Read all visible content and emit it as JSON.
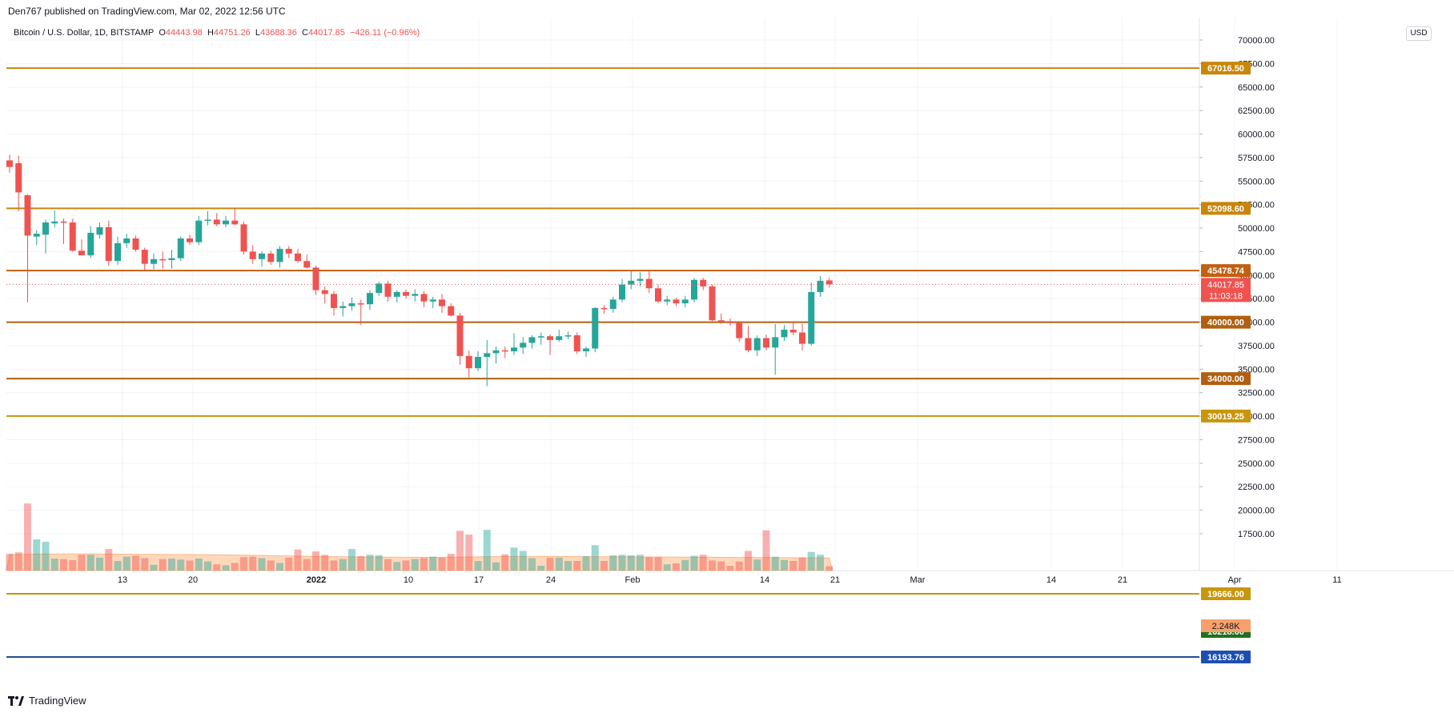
{
  "header": {
    "published": "Den767 published on TradingView.com, Mar 02, 2022 12:56 UTC"
  },
  "symbol_bar": {
    "name": "Bitcoin / U.S. Dollar, 1D, BITSTAMP",
    "o_label": "O",
    "o_value": "44443.98",
    "h_label": "H",
    "h_value": "44751.26",
    "l_label": "L",
    "l_value": "43688.36",
    "c_label": "C",
    "c_value": "44017.85",
    "change": "−426.11 (−0.96%)"
  },
  "currency_button": "USD",
  "footer": {
    "brand": "TradingView"
  },
  "colors": {
    "up": "#26a69a",
    "down": "#ef5350",
    "level_line": "#b8860b",
    "grid": "#f0f3fa",
    "blue_line": "#1e4f8a",
    "volume_ma": "#ffcba4"
  },
  "chart_data": {
    "type": "candlestick",
    "ylim": [
      14300,
      71500
    ],
    "price_ticks": [
      "70000.00",
      "67500.00",
      "65000.00",
      "62500.00",
      "60000.00",
      "57500.00",
      "55000.00",
      "52500.00",
      "50000.00",
      "47500.00",
      "45000.00",
      "42500.00",
      "40000.00",
      "37500.00",
      "35000.00",
      "32500.00",
      "30000.00",
      "27500.00",
      "25000.00",
      "22500.00",
      "20000.00",
      "17500.00"
    ],
    "x_ticks": [
      "13",
      "20",
      "2022",
      "10",
      "17",
      "24",
      "Feb",
      "14",
      "21",
      "Mar",
      "14",
      "21",
      "Apr",
      "11"
    ],
    "horizontal_levels": [
      {
        "price": 67016.5,
        "label": "67016.50",
        "color": "#c8860a"
      },
      {
        "price": 52098.6,
        "label": "52098.60",
        "color": "#c8860a"
      },
      {
        "price": 45478.74,
        "label": "45478.74",
        "color": "#c06010"
      },
      {
        "price": 40000.0,
        "label": "40000.00",
        "color": "#b06010"
      },
      {
        "price": 34000.0,
        "label": "34000.00",
        "color": "#b06010"
      },
      {
        "price": 30019.25,
        "label": "30019.25",
        "color": "#c8960a"
      },
      {
        "price": 19666.0,
        "label": "19666.00",
        "color": "#c8960a"
      },
      {
        "price": 16218.0,
        "label": "16218.00",
        "color": "#1f6f1f"
      },
      {
        "price": 16193.76,
        "label": "16193.76",
        "color": "#1e4fb0"
      }
    ],
    "last_price": {
      "value": 44017.85,
      "label": "44017.85",
      "countdown": "11:03:18"
    },
    "volume_label": "2.248K",
    "candles": [
      {
        "o": 57200,
        "h": 57800,
        "l": 55900,
        "c": 56500
      },
      {
        "o": 56900,
        "h": 57700,
        "l": 51800,
        "c": 53800
      },
      {
        "o": 53500,
        "h": 53600,
        "l": 42100,
        "c": 49200
      },
      {
        "o": 49100,
        "h": 49800,
        "l": 48200,
        "c": 49400
      },
      {
        "o": 49300,
        "h": 50900,
        "l": 47300,
        "c": 50600
      },
      {
        "o": 50500,
        "h": 51900,
        "l": 50100,
        "c": 50700
      },
      {
        "o": 50700,
        "h": 51000,
        "l": 48300,
        "c": 50600
      },
      {
        "o": 50600,
        "h": 51000,
        "l": 47500,
        "c": 47600
      },
      {
        "o": 47600,
        "h": 48800,
        "l": 47200,
        "c": 47100
      },
      {
        "o": 47100,
        "h": 50200,
        "l": 46800,
        "c": 49500
      },
      {
        "o": 49300,
        "h": 50600,
        "l": 48900,
        "c": 50100
      },
      {
        "o": 50100,
        "h": 50800,
        "l": 46000,
        "c": 46500
      },
      {
        "o": 46500,
        "h": 49100,
        "l": 46100,
        "c": 48400
      },
      {
        "o": 48400,
        "h": 49400,
        "l": 47900,
        "c": 48900
      },
      {
        "o": 48900,
        "h": 49200,
        "l": 47500,
        "c": 47700
      },
      {
        "o": 47700,
        "h": 47900,
        "l": 45500,
        "c": 46200
      },
      {
        "o": 46200,
        "h": 47300,
        "l": 45600,
        "c": 46700
      },
      {
        "o": 46700,
        "h": 47500,
        "l": 45700,
        "c": 46600
      },
      {
        "o": 46600,
        "h": 47700,
        "l": 45700,
        "c": 46800
      },
      {
        "o": 46800,
        "h": 49100,
        "l": 46500,
        "c": 48900
      },
      {
        "o": 48900,
        "h": 49300,
        "l": 48200,
        "c": 48500
      },
      {
        "o": 48500,
        "h": 51300,
        "l": 48200,
        "c": 50800
      },
      {
        "o": 50800,
        "h": 51800,
        "l": 50300,
        "c": 50900
      },
      {
        "o": 50900,
        "h": 51600,
        "l": 50200,
        "c": 50400
      },
      {
        "o": 50400,
        "h": 51300,
        "l": 50100,
        "c": 50800
      },
      {
        "o": 50800,
        "h": 52100,
        "l": 50300,
        "c": 50400
      },
      {
        "o": 50400,
        "h": 50700,
        "l": 47200,
        "c": 47500
      },
      {
        "o": 47500,
        "h": 48200,
        "l": 46200,
        "c": 46700
      },
      {
        "o": 46700,
        "h": 47500,
        "l": 45900,
        "c": 47300
      },
      {
        "o": 47300,
        "h": 47600,
        "l": 46100,
        "c": 46400
      },
      {
        "o": 46400,
        "h": 48100,
        "l": 45800,
        "c": 47800
      },
      {
        "o": 47800,
        "h": 48100,
        "l": 46800,
        "c": 47300
      },
      {
        "o": 47300,
        "h": 47800,
        "l": 46300,
        "c": 46500
      },
      {
        "o": 46500,
        "h": 47200,
        "l": 45700,
        "c": 45800
      },
      {
        "o": 45800,
        "h": 46000,
        "l": 42900,
        "c": 43400
      },
      {
        "o": 43400,
        "h": 43800,
        "l": 42000,
        "c": 43000
      },
      {
        "o": 43000,
        "h": 43300,
        "l": 40700,
        "c": 41500
      },
      {
        "o": 41500,
        "h": 42200,
        "l": 40600,
        "c": 41700
      },
      {
        "o": 41700,
        "h": 42600,
        "l": 41200,
        "c": 42000
      },
      {
        "o": 42000,
        "h": 42400,
        "l": 39700,
        "c": 41900
      },
      {
        "o": 41900,
        "h": 43400,
        "l": 41300,
        "c": 43100
      },
      {
        "o": 43100,
        "h": 44300,
        "l": 42800,
        "c": 44100
      },
      {
        "o": 44100,
        "h": 44400,
        "l": 42200,
        "c": 42700
      },
      {
        "o": 42700,
        "h": 43400,
        "l": 42100,
        "c": 43200
      },
      {
        "o": 43200,
        "h": 43500,
        "l": 42500,
        "c": 42800
      },
      {
        "o": 42800,
        "h": 43500,
        "l": 42200,
        "c": 43000
      },
      {
        "o": 43000,
        "h": 43300,
        "l": 41600,
        "c": 42200
      },
      {
        "o": 42200,
        "h": 42700,
        "l": 41500,
        "c": 42400
      },
      {
        "o": 42400,
        "h": 43000,
        "l": 41000,
        "c": 41700
      },
      {
        "o": 41700,
        "h": 42000,
        "l": 40600,
        "c": 40700
      },
      {
        "o": 40700,
        "h": 41000,
        "l": 35500,
        "c": 36400
      },
      {
        "o": 36400,
        "h": 37000,
        "l": 34100,
        "c": 35100
      },
      {
        "o": 35100,
        "h": 36900,
        "l": 34800,
        "c": 36300
      },
      {
        "o": 36300,
        "h": 38100,
        "l": 33200,
        "c": 36700
      },
      {
        "o": 36700,
        "h": 37400,
        "l": 35600,
        "c": 37000
      },
      {
        "o": 37000,
        "h": 37400,
        "l": 36200,
        "c": 36900
      },
      {
        "o": 36900,
        "h": 38800,
        "l": 36500,
        "c": 37300
      },
      {
        "o": 37300,
        "h": 38400,
        "l": 36600,
        "c": 37800
      },
      {
        "o": 37800,
        "h": 38600,
        "l": 37200,
        "c": 38400
      },
      {
        "o": 38400,
        "h": 38900,
        "l": 37600,
        "c": 38500
      },
      {
        "o": 38500,
        "h": 38700,
        "l": 36500,
        "c": 38100
      },
      {
        "o": 38100,
        "h": 39200,
        "l": 37900,
        "c": 38500
      },
      {
        "o": 38500,
        "h": 39000,
        "l": 38200,
        "c": 38600
      },
      {
        "o": 38600,
        "h": 38900,
        "l": 36600,
        "c": 36900
      },
      {
        "o": 36900,
        "h": 37400,
        "l": 36300,
        "c": 37200
      },
      {
        "o": 37200,
        "h": 41600,
        "l": 36800,
        "c": 41500
      },
      {
        "o": 41500,
        "h": 41800,
        "l": 40900,
        "c": 41400
      },
      {
        "o": 41400,
        "h": 42700,
        "l": 41000,
        "c": 42400
      },
      {
        "o": 42400,
        "h": 44600,
        "l": 42100,
        "c": 44000
      },
      {
        "o": 44000,
        "h": 45400,
        "l": 43500,
        "c": 44400
      },
      {
        "o": 44400,
        "h": 45300,
        "l": 43800,
        "c": 44600
      },
      {
        "o": 44600,
        "h": 45600,
        "l": 43100,
        "c": 43600
      },
      {
        "o": 43600,
        "h": 44000,
        "l": 42000,
        "c": 42200
      },
      {
        "o": 42200,
        "h": 42800,
        "l": 41800,
        "c": 42400
      },
      {
        "o": 42400,
        "h": 42600,
        "l": 41700,
        "c": 42000
      },
      {
        "o": 42000,
        "h": 42800,
        "l": 41600,
        "c": 42400
      },
      {
        "o": 42400,
        "h": 44700,
        "l": 42100,
        "c": 44500
      },
      {
        "o": 44500,
        "h": 44700,
        "l": 43400,
        "c": 43800
      },
      {
        "o": 43800,
        "h": 44000,
        "l": 40100,
        "c": 40200
      },
      {
        "o": 40200,
        "h": 40900,
        "l": 39800,
        "c": 40100
      },
      {
        "o": 40100,
        "h": 40400,
        "l": 39600,
        "c": 39900
      },
      {
        "o": 39900,
        "h": 40100,
        "l": 37900,
        "c": 38300
      },
      {
        "o": 38300,
        "h": 39600,
        "l": 36800,
        "c": 37000
      },
      {
        "o": 37000,
        "h": 38600,
        "l": 36400,
        "c": 38300
      },
      {
        "o": 38300,
        "h": 38700,
        "l": 37000,
        "c": 37300
      },
      {
        "o": 37300,
        "h": 39800,
        "l": 34400,
        "c": 38400
      },
      {
        "o": 38400,
        "h": 39700,
        "l": 38000,
        "c": 39200
      },
      {
        "o": 39200,
        "h": 40000,
        "l": 38600,
        "c": 38900
      },
      {
        "o": 38900,
        "h": 39800,
        "l": 37000,
        "c": 37700
      },
      {
        "o": 37700,
        "h": 44200,
        "l": 37500,
        "c": 43200
      },
      {
        "o": 43200,
        "h": 44900,
        "l": 42700,
        "c": 44400
      },
      {
        "o": 44440,
        "h": 44750,
        "l": 43690,
        "c": 44020
      }
    ],
    "volume_scale": {
      "ymin": 14300,
      "ymax": 28500
    },
    "volumes": [
      17800,
      18100,
      28300,
      20800,
      20300,
      16800,
      16700,
      16500,
      17600,
      17600,
      17000,
      18800,
      16300,
      17200,
      17400,
      16900,
      15500,
      16700,
      16800,
      16600,
      16400,
      16800,
      16200,
      15600,
      15400,
      15900,
      17100,
      17200,
      16900,
      16400,
      15900,
      17000,
      18700,
      16700,
      18300,
      17600,
      16400,
      16700,
      18800,
      17300,
      17600,
      17500,
      16700,
      16100,
      16400,
      16700,
      16900,
      17200,
      17000,
      17800,
      22600,
      21800,
      16300,
      22800,
      16000,
      17700,
      19100,
      18400,
      16900,
      15300,
      17000,
      17000,
      16300,
      16300,
      17300,
      19600,
      16300,
      17500,
      17600,
      17500,
      17600,
      17100,
      17100,
      15600,
      15800,
      16500,
      17400,
      17600,
      16400,
      16200,
      15300,
      16200,
      18400,
      16600,
      22700,
      17200,
      16500,
      16300,
      17000,
      18200,
      17600,
      15200
    ],
    "volume_ma": [
      17600,
      17650,
      17700,
      17720,
      17740,
      17750,
      17760,
      17760,
      17760,
      17760,
      17750,
      17740,
      17730,
      17720,
      17700,
      17690,
      17680,
      17670,
      17660,
      17650,
      17640,
      17620,
      17600,
      17580,
      17560,
      17540,
      17520,
      17500,
      17460,
      17420,
      17380,
      17340,
      17310,
      17280,
      17250,
      17220,
      17200,
      17180,
      17160,
      17140,
      17120,
      17110,
      17100,
      17090,
      17080,
      17070,
      17060,
      17060,
      17060,
      17080,
      17110,
      17140,
      17170,
      17200,
      17220,
      17240,
      17260,
      17270,
      17270,
      17260,
      17250,
      17240,
      17230,
      17220,
      17210,
      17200,
      17190,
      17180,
      17170,
      17160,
      17150,
      17140,
      17130,
      17120,
      17110,
      17100,
      17090,
      17080,
      17070,
      17060,
      17050,
      17040,
      17030,
      17020,
      17010,
      17000,
      16990,
      16980,
      16970,
      16960,
      16950,
      16940
    ]
  }
}
